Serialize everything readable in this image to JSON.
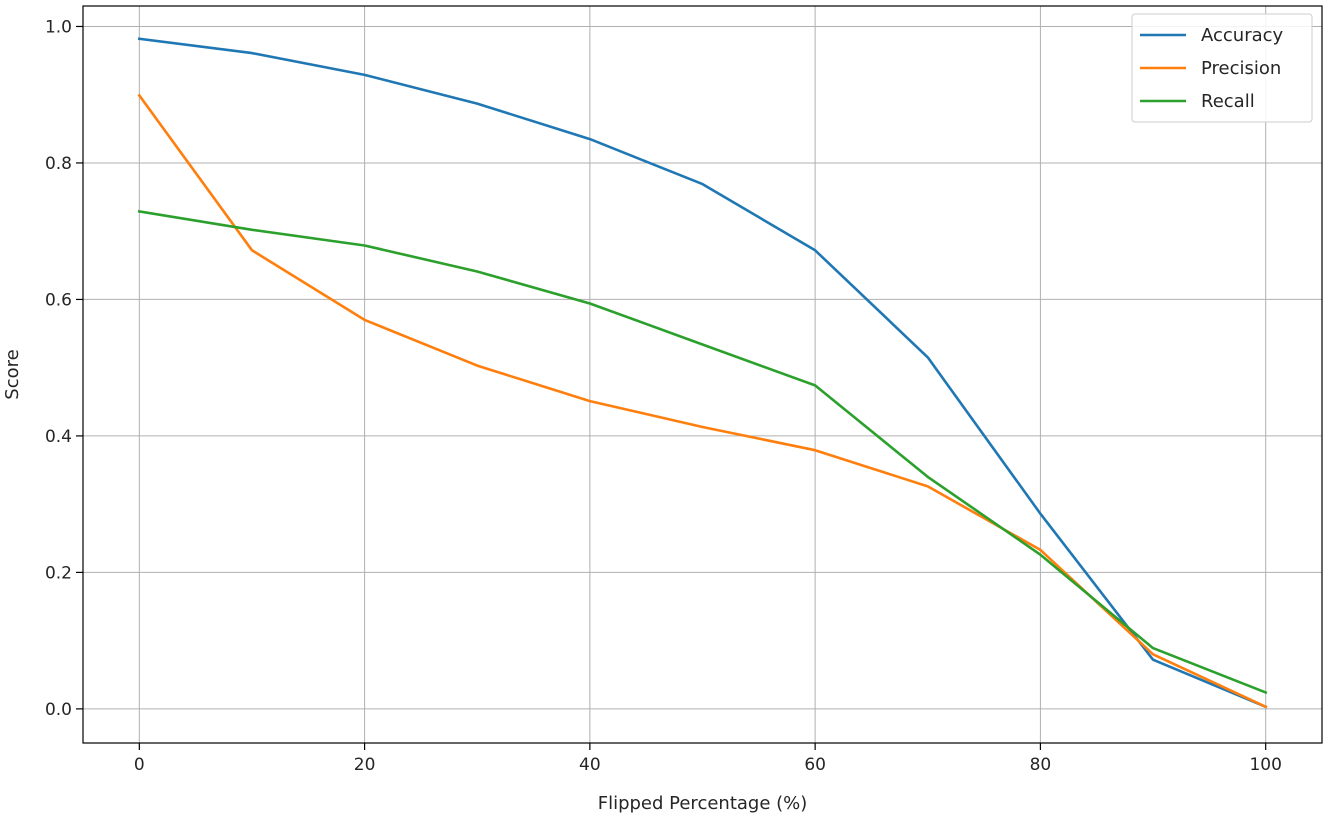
{
  "chart_data": {
    "type": "line",
    "title": "",
    "xlabel": "Flipped Percentage (%)",
    "ylabel": "Score",
    "xlim": [
      -5,
      105
    ],
    "ylim": [
      -0.05,
      1.03
    ],
    "xticks": [
      0,
      20,
      40,
      60,
      80,
      100
    ],
    "xtick_labels": [
      "0",
      "20",
      "40",
      "60",
      "80",
      "100"
    ],
    "yticks": [
      0.0,
      0.2,
      0.4,
      0.6,
      0.8,
      1.0
    ],
    "ytick_labels": [
      "0.0",
      "0.2",
      "0.4",
      "0.6",
      "0.8",
      "1.0"
    ],
    "grid": true,
    "legend_position": "top-right",
    "x": [
      0,
      10,
      20,
      30,
      40,
      50,
      60,
      70,
      80,
      90,
      100
    ],
    "series": [
      {
        "name": "Accuracy",
        "color": "#1f77b4",
        "values": [
          0.982,
          0.961,
          0.929,
          0.887,
          0.835,
          0.769,
          0.672,
          0.515,
          0.286,
          0.072,
          0.003
        ]
      },
      {
        "name": "Precision",
        "color": "#ff7f0e",
        "values": [
          0.899,
          0.672,
          0.57,
          0.503,
          0.451,
          0.413,
          0.379,
          0.326,
          0.233,
          0.08,
          0.003
        ]
      },
      {
        "name": "Recall",
        "color": "#2ca02c",
        "values": [
          0.729,
          0.702,
          0.679,
          0.641,
          0.594,
          0.534,
          0.474,
          0.34,
          0.226,
          0.089,
          0.024
        ]
      }
    ]
  }
}
